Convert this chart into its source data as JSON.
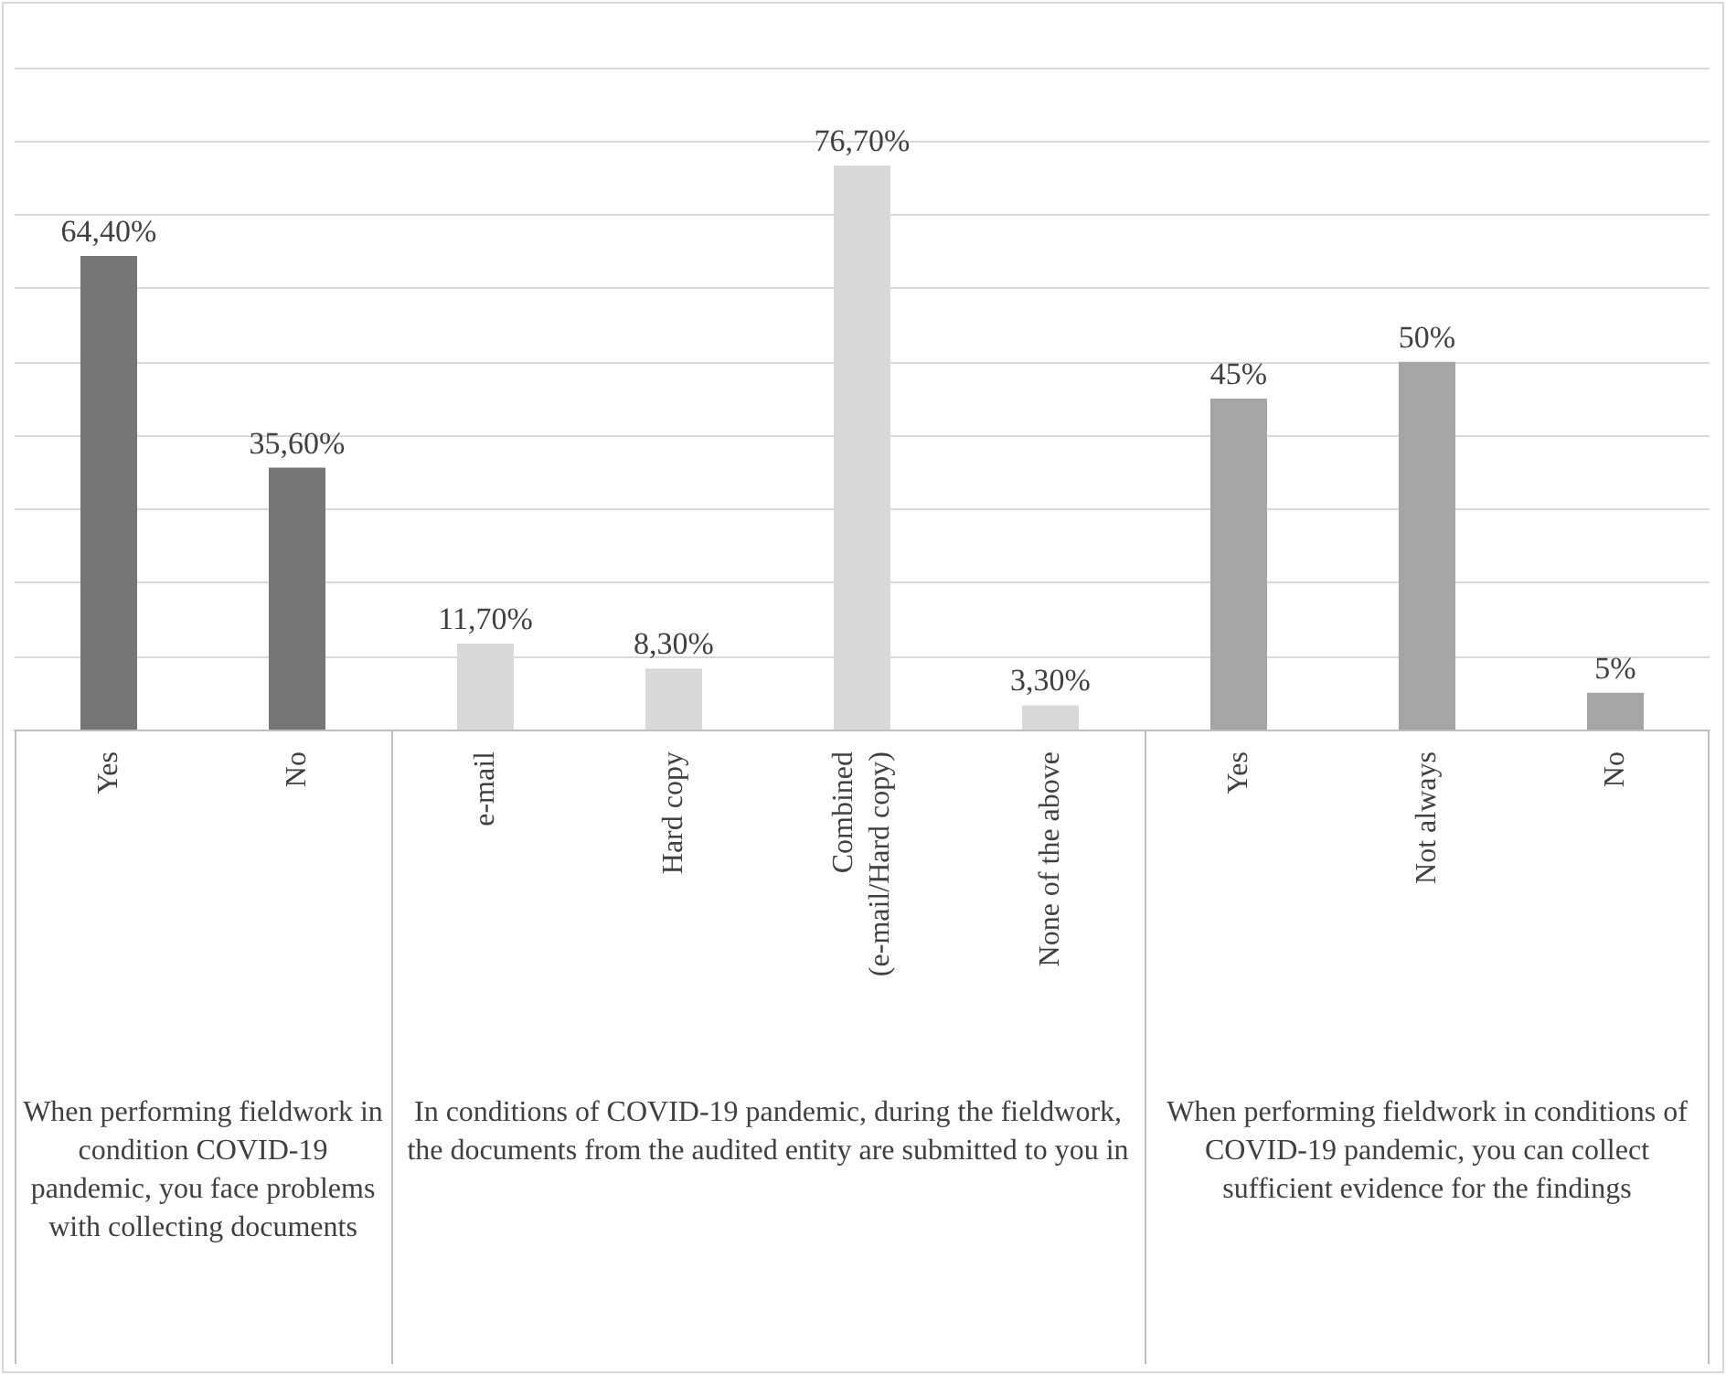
{
  "chart_data": {
    "type": "bar",
    "categories": [
      "Yes",
      "No",
      "e-mail",
      "Hard copy",
      "Combined\n(e-mail/Hard copy)",
      "None of the above",
      "Yes",
      "Not always",
      "No"
    ],
    "values": [
      64.4,
      35.6,
      11.7,
      8.3,
      76.7,
      3.3,
      45,
      50,
      5
    ],
    "value_labels": [
      "64,40%",
      "35,60%",
      "11,70%",
      "8,30%",
      "76,70%",
      "3,30%",
      "45%",
      "50%",
      "5%"
    ],
    "colors": [
      "#767676",
      "#767676",
      "#d9d9d9",
      "#d9d9d9",
      "#d9d9d9",
      "#d9d9d9",
      "#a5a5a5",
      "#a5a5a5",
      "#a5a5a5"
    ],
    "ylim": [
      0,
      90
    ],
    "tick_labels": "x",
    "grid": "y",
    "annotations": [
      "When performing fieldwork in condition COVID-19 pandemic, you face problems with collecting documents",
      "In conditions of COVID-19 pandemic, during the fieldwork, the documents from the audited entity are submitted to you in",
      "When performing fieldwork in conditions of COVID-19 pandemic, you can collect sufficient evidence for the findings"
    ]
  }
}
